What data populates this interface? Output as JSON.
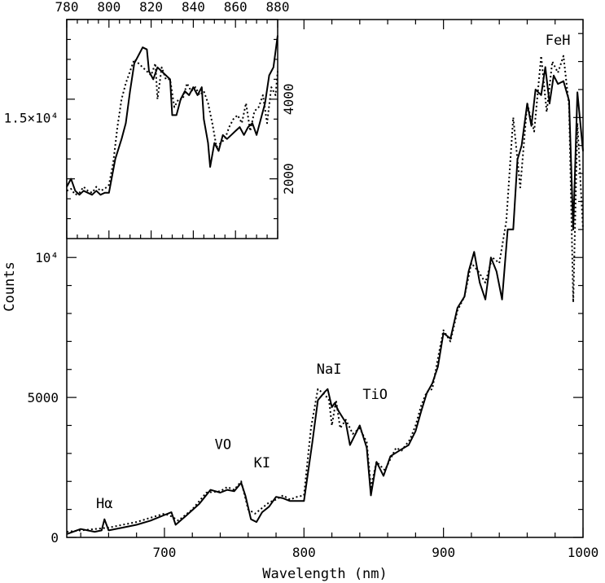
{
  "chart_data": [
    {
      "type": "line",
      "panel": "main",
      "xlabel": "Wavelength (nm)",
      "ylabel": "Counts",
      "xlim": [
        630,
        1000
      ],
      "ylim": [
        0,
        18500
      ],
      "xticks": [
        {
          "v": 700,
          "label": "700"
        },
        {
          "v": 800,
          "label": "800"
        },
        {
          "v": 900,
          "label": "900"
        },
        {
          "v": 1000,
          "label": "1000"
        }
      ],
      "yticks": [
        {
          "v": 0,
          "label": "0"
        },
        {
          "v": 5000,
          "label": "5000"
        },
        {
          "v": 10000,
          "label": "10⁴"
        },
        {
          "v": 15000,
          "label": "1.5×10⁴"
        }
      ],
      "annotations": [
        {
          "text": "Hα",
          "x": 657,
          "y": 1050
        },
        {
          "text": "VO",
          "x": 742,
          "y": 3150
        },
        {
          "text": "KI",
          "x": 770,
          "y": 2500
        },
        {
          "text": "NaI",
          "x": 818,
          "y": 5850
        },
        {
          "text": "TiO",
          "x": 851,
          "y": 4950
        },
        {
          "text": "FeH",
          "x": 982,
          "y": 17600
        }
      ],
      "series": [
        {
          "style": "solid",
          "x": [
            630,
            640,
            650,
            655,
            657,
            660,
            670,
            680,
            690,
            700,
            705,
            708,
            715,
            725,
            733,
            740,
            745,
            750,
            755,
            758,
            762,
            766,
            770,
            775,
            780,
            785,
            790,
            795,
            800,
            806,
            810,
            815,
            817,
            820,
            822,
            825,
            830,
            833,
            840,
            845,
            848,
            852,
            857,
            862,
            870,
            875,
            880,
            884,
            888,
            892,
            896,
            900,
            905,
            910,
            915,
            918,
            922,
            926,
            930,
            934,
            938,
            942,
            946,
            950,
            953,
            956,
            960,
            963,
            966,
            970,
            973,
            976,
            979,
            982,
            986,
            990,
            993,
            996,
            1000
          ],
          "y": [
            120,
            300,
            200,
            250,
            650,
            250,
            350,
            450,
            600,
            800,
            900,
            450,
            750,
            1200,
            1700,
            1600,
            1700,
            1650,
            1950,
            1500,
            650,
            550,
            900,
            1100,
            1450,
            1400,
            1300,
            1300,
            1300,
            3400,
            4900,
            5200,
            5300,
            4650,
            4800,
            4500,
            4100,
            3300,
            4000,
            3200,
            1500,
            2700,
            2200,
            2900,
            3150,
            3300,
            3800,
            4500,
            5150,
            5500,
            6100,
            7300,
            7100,
            8200,
            8600,
            9500,
            10200,
            9100,
            8500,
            10000,
            9500,
            8500,
            11000,
            11000,
            13500,
            14000,
            15500,
            14700,
            16000,
            15800,
            16800,
            15500,
            16500,
            16200,
            16300,
            15600,
            11000,
            15900,
            13800
          ]
        },
        {
          "style": "dotted",
          "x": [
            630,
            640,
            650,
            660,
            670,
            680,
            690,
            700,
            705,
            710,
            720,
            730,
            740,
            745,
            750,
            755,
            760,
            765,
            770,
            775,
            780,
            785,
            790,
            795,
            800,
            805,
            810,
            815,
            818,
            820,
            823,
            826,
            830,
            835,
            840,
            845,
            848,
            852,
            858,
            862,
            866,
            870,
            876,
            880,
            884,
            888,
            892,
            896,
            900,
            905,
            910,
            915,
            920,
            925,
            930,
            935,
            940,
            945,
            950,
            955,
            960,
            965,
            970,
            974,
            978,
            982,
            986,
            990,
            993,
            996,
            1000
          ],
          "y": [
            200,
            250,
            300,
            350,
            450,
            550,
            700,
            850,
            750,
            600,
            1000,
            1600,
            1650,
            1800,
            1700,
            2000,
            1000,
            850,
            1050,
            1250,
            1350,
            1500,
            1350,
            1450,
            1500,
            3900,
            5300,
            5100,
            4900,
            4000,
            4900,
            3900,
            4200,
            3700,
            3900,
            3400,
            1800,
            2700,
            2400,
            2800,
            3200,
            3100,
            3500,
            4000,
            4700,
            5200,
            5300,
            6400,
            7400,
            7000,
            8100,
            8600,
            9800,
            9500,
            9100,
            10000,
            9800,
            11300,
            15000,
            12500,
            15500,
            14500,
            17200,
            15200,
            17000,
            16600,
            17200,
            15400,
            8400,
            14800,
            11000
          ]
        }
      ]
    },
    {
      "type": "line",
      "panel": "inset",
      "xlim": [
        780,
        880
      ],
      "ylim": [
        500,
        6000
      ],
      "xticks": [
        {
          "v": 780,
          "label": "780"
        },
        {
          "v": 800,
          "label": "800"
        },
        {
          "v": 820,
          "label": "820"
        },
        {
          "v": 840,
          "label": "840"
        },
        {
          "v": 860,
          "label": "860"
        },
        {
          "v": 880,
          "label": "880"
        }
      ],
      "yticks": [
        {
          "v": 2000,
          "label": "2000"
        },
        {
          "v": 4000,
          "label": "4000"
        }
      ],
      "series": [
        {
          "style": "solid",
          "x": [
            780,
            782,
            784,
            786,
            788,
            790,
            792,
            794,
            796,
            798,
            800,
            803,
            806,
            808,
            810,
            812,
            814,
            816,
            818,
            819,
            821,
            823,
            825,
            827,
            829,
            830,
            832,
            834,
            836,
            838,
            840,
            842,
            844,
            845,
            847,
            848,
            850,
            852,
            854,
            856,
            858,
            860,
            862,
            864,
            866,
            868,
            870,
            872,
            874,
            876,
            878,
            880
          ],
          "y": [
            1800,
            2000,
            1700,
            1600,
            1700,
            1650,
            1600,
            1700,
            1600,
            1650,
            1650,
            2500,
            3000,
            3400,
            4200,
            4900,
            5100,
            5300,
            5250,
            4700,
            4500,
            4800,
            4700,
            4600,
            4500,
            3600,
            3600,
            4000,
            4200,
            4100,
            4300,
            4100,
            4300,
            3500,
            2900,
            2300,
            2900,
            2700,
            3100,
            3000,
            3100,
            3200,
            3300,
            3100,
            3300,
            3400,
            3100,
            3500,
            3900,
            4600,
            4800,
            5600
          ]
        },
        {
          "style": "dotted",
          "x": [
            780,
            782,
            784,
            786,
            788,
            790,
            792,
            794,
            796,
            798,
            800,
            802,
            804,
            806,
            808,
            810,
            812,
            814,
            816,
            818,
            820,
            822,
            823,
            825,
            827,
            829,
            831,
            833,
            835,
            837,
            839,
            841,
            843,
            845,
            847,
            849,
            851,
            853,
            855,
            857,
            859,
            861,
            863,
            865,
            867,
            869,
            871,
            873,
            875,
            877,
            879,
            880
          ],
          "y": [
            1700,
            1750,
            1600,
            1650,
            1800,
            1700,
            1650,
            1800,
            1700,
            1750,
            1850,
            2400,
            3300,
            4000,
            4400,
            4700,
            5000,
            4900,
            4800,
            4700,
            4600,
            4900,
            4000,
            4800,
            4500,
            4500,
            3800,
            4000,
            4000,
            4400,
            4200,
            4300,
            4100,
            4200,
            3900,
            3400,
            2800,
            2900,
            3000,
            3300,
            3500,
            3600,
            3400,
            3900,
            3200,
            3700,
            3800,
            4100,
            3400,
            4300,
            4100,
            4700
          ]
        }
      ]
    }
  ]
}
